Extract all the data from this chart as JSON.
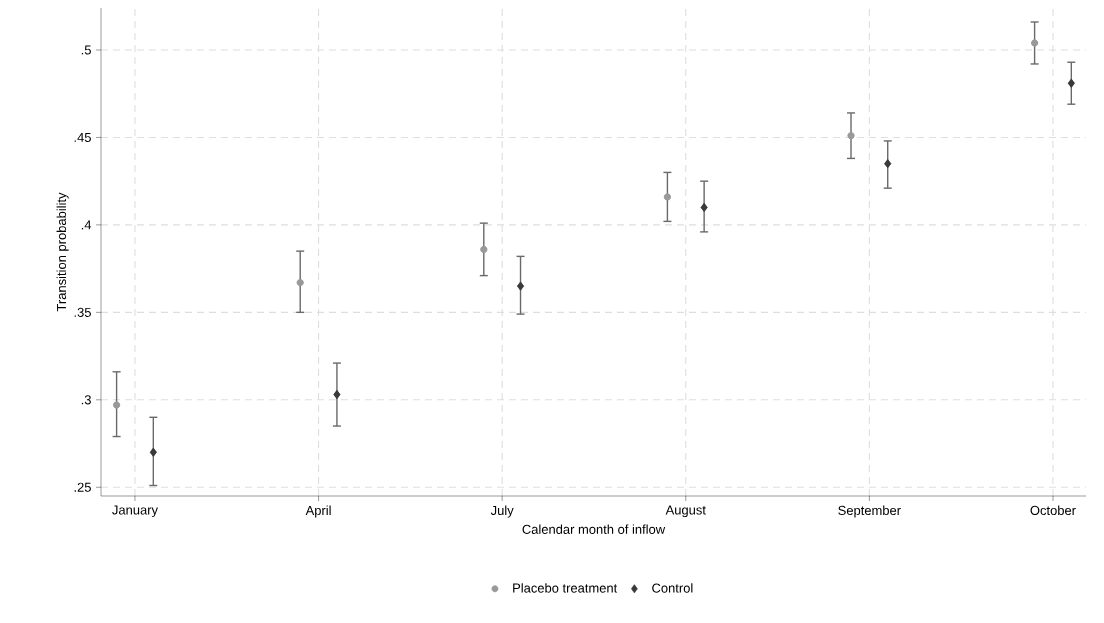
{
  "chart_data": {
    "type": "scatter",
    "xlabel": "Calendar month of inflow",
    "ylabel": "Transition probability",
    "categories": [
      "January",
      "April",
      "July",
      "August",
      "September",
      "October"
    ],
    "series": [
      {
        "name": "Placebo treatment",
        "color": "#999999",
        "marker": "circle",
        "values": [
          0.297,
          0.367,
          0.386,
          0.416,
          0.451,
          0.504
        ],
        "errors": [
          [
            0.279,
            0.316
          ],
          [
            0.35,
            0.385
          ],
          [
            0.371,
            0.401
          ],
          [
            0.402,
            0.43
          ],
          [
            0.438,
            0.464
          ],
          [
            0.492,
            0.516
          ]
        ]
      },
      {
        "name": "Control",
        "color": "#3a3a3a",
        "marker": "diamond",
        "values": [
          0.27,
          0.303,
          0.365,
          0.41,
          0.435,
          0.481
        ],
        "errors": [
          [
            0.251,
            0.29
          ],
          [
            0.285,
            0.321
          ],
          [
            0.349,
            0.382
          ],
          [
            0.396,
            0.425
          ],
          [
            0.421,
            0.448
          ],
          [
            0.469,
            0.493
          ]
        ]
      }
    ],
    "ylim": [
      0.245,
      0.524
    ],
    "yticks": [
      {
        "value": 0.25,
        "label": ".25"
      },
      {
        "value": 0.3,
        "label": ".3"
      },
      {
        "value": 0.35,
        "label": ".35"
      },
      {
        "value": 0.4,
        "label": ".4"
      },
      {
        "value": 0.45,
        "label": ".45"
      },
      {
        "value": 0.5,
        "label": ".5"
      }
    ],
    "grid": true,
    "legend": "bottom"
  }
}
